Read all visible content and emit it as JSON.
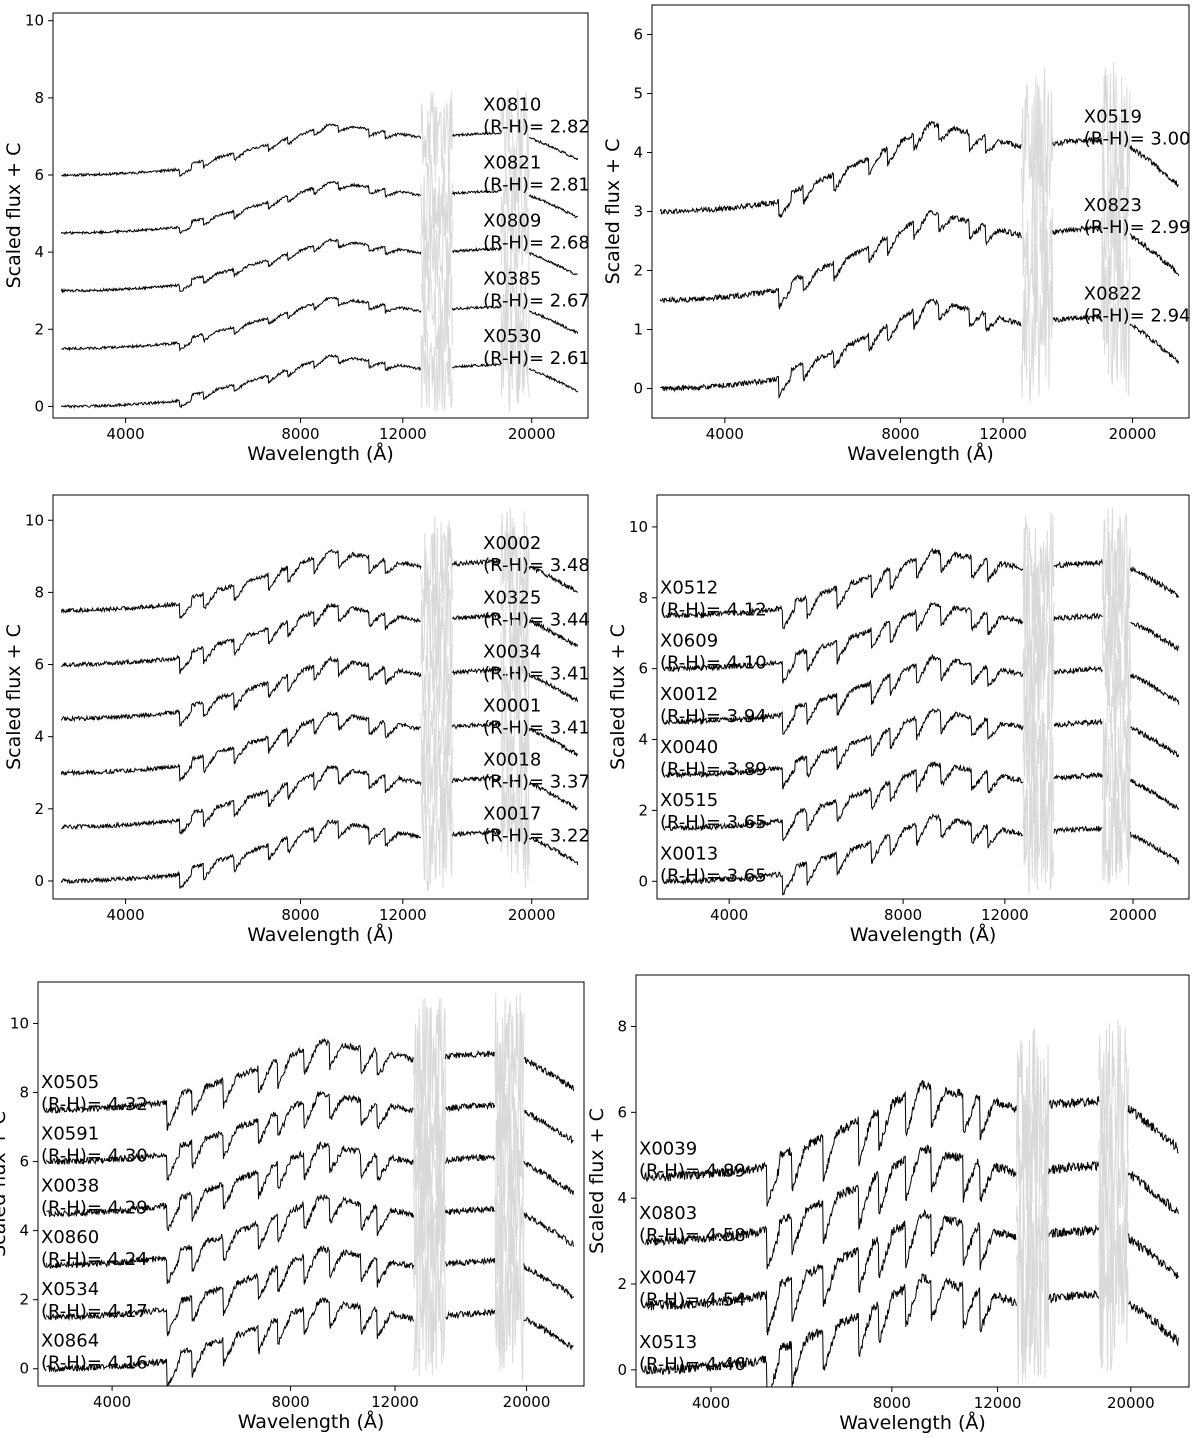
{
  "figure": {
    "chart_data": [
      {
        "type": "line",
        "xlabel": "Wavelength (Å)",
        "ylabel": "Scaled flux + C",
        "x_scale": "log",
        "xlim": [
          3000,
          25000
        ],
        "ylim": [
          -0.3,
          10.2
        ],
        "x_ticks": [
          4000,
          8000,
          12000,
          20000
        ],
        "y_ticks": [
          0,
          2,
          4,
          6,
          8,
          10
        ],
        "label_position": "right",
        "series": [
          {
            "name": "X0810",
            "color_index": "(R-H)= 2.82",
            "offset": 6.0
          },
          {
            "name": "X0821",
            "color_index": "(R-H)= 2.81",
            "offset": 4.5
          },
          {
            "name": "X0809",
            "color_index": "(R-H)= 2.68",
            "offset": 3.0
          },
          {
            "name": "X0385",
            "color_index": "(R-H)= 2.67",
            "offset": 1.5
          },
          {
            "name": "X0530",
            "color_index": "(R-H)= 2.61",
            "offset": 0.0
          }
        ]
      },
      {
        "type": "line",
        "xlabel": "Wavelength (Å)",
        "ylabel": "Scaled flux + C",
        "x_scale": "log",
        "xlim": [
          3000,
          25000
        ],
        "ylim": [
          -0.5,
          6.5
        ],
        "x_ticks": [
          4000,
          8000,
          12000,
          20000
        ],
        "y_ticks": [
          0,
          1,
          2,
          3,
          4,
          5,
          6
        ],
        "label_position": "right",
        "series": [
          {
            "name": "X0519",
            "color_index": "(R-H)= 3.00",
            "offset": 3.0
          },
          {
            "name": "X0823",
            "color_index": "(R-H)= 2.99",
            "offset": 1.5
          },
          {
            "name": "X0822",
            "color_index": "(R-H)= 2.94",
            "offset": 0.0
          }
        ]
      },
      {
        "type": "line",
        "xlabel": "Wavelength (Å)",
        "ylabel": "Scaled flux + C",
        "x_scale": "log",
        "xlim": [
          3000,
          25000
        ],
        "ylim": [
          -0.5,
          10.7
        ],
        "x_ticks": [
          4000,
          8000,
          12000,
          20000
        ],
        "y_ticks": [
          0,
          2,
          4,
          6,
          8,
          10
        ],
        "label_position": "right",
        "series": [
          {
            "name": "X0002",
            "color_index": "(R-H)= 3.48",
            "offset": 7.5
          },
          {
            "name": "X0325",
            "color_index": "(R-H)= 3.44",
            "offset": 6.0
          },
          {
            "name": "X0034",
            "color_index": "(R-H)= 3.41",
            "offset": 4.5
          },
          {
            "name": "X0001",
            "color_index": "(R-H)= 3.41",
            "offset": 3.0
          },
          {
            "name": "X0018",
            "color_index": "(R-H)= 3.37",
            "offset": 1.5
          },
          {
            "name": "X0017",
            "color_index": "(R-H)= 3.22",
            "offset": 0.0
          }
        ]
      },
      {
        "type": "line",
        "xlabel": "Wavelength (Å)",
        "ylabel": "Scaled flux + C",
        "x_scale": "log",
        "xlim": [
          3000,
          25000
        ],
        "ylim": [
          -0.5,
          10.9
        ],
        "x_ticks": [
          4000,
          8000,
          12000,
          20000
        ],
        "y_ticks": [
          0,
          2,
          4,
          6,
          8,
          10
        ],
        "label_position": "left",
        "series": [
          {
            "name": "X0512",
            "color_index": "(R-H)= 4.12",
            "offset": 7.5
          },
          {
            "name": "X0609",
            "color_index": "(R-H)= 4.10",
            "offset": 6.0
          },
          {
            "name": "X0012",
            "color_index": "(R-H)= 3.94",
            "offset": 4.5
          },
          {
            "name": "X0040",
            "color_index": "(R-H)= 3.89",
            "offset": 3.0
          },
          {
            "name": "X0515",
            "color_index": "(R-H)= 3.65",
            "offset": 1.5
          },
          {
            "name": "X0013",
            "color_index": "(R-H)= 3.65",
            "offset": 0.0
          }
        ]
      },
      {
        "type": "line",
        "xlabel": "Wavelength (Å)",
        "ylabel": "Scaled flux + C",
        "x_scale": "log",
        "xlim": [
          3000,
          25000
        ],
        "ylim": [
          -0.5,
          11.2
        ],
        "x_ticks": [
          4000,
          8000,
          12000,
          20000
        ],
        "y_ticks": [
          0,
          2,
          4,
          6,
          8,
          10
        ],
        "label_position": "left",
        "series": [
          {
            "name": "X0505",
            "color_index": "(R-H)= 4.32",
            "offset": 7.5
          },
          {
            "name": "X0591",
            "color_index": "(R-H)= 4.30",
            "offset": 6.0
          },
          {
            "name": "X0038",
            "color_index": "(R-H)= 4.29",
            "offset": 4.5
          },
          {
            "name": "X0860",
            "color_index": "(R-H)= 4.24",
            "offset": 3.0
          },
          {
            "name": "X0534",
            "color_index": "(R-H)= 4.17",
            "offset": 1.5
          },
          {
            "name": "X0864",
            "color_index": "(R-H)= 4.16",
            "offset": 0.0
          }
        ]
      },
      {
        "type": "line",
        "xlabel": "Wavelength (Å)",
        "ylabel": "Scaled flux + C",
        "x_scale": "log",
        "xlim": [
          3000,
          25000
        ],
        "ylim": [
          -0.4,
          9.2
        ],
        "x_ticks": [
          4000,
          8000,
          12000,
          20000
        ],
        "y_ticks": [
          0,
          2,
          4,
          6,
          8
        ],
        "label_position": "left",
        "series": [
          {
            "name": "X0039",
            "color_index": "(R-H)= 4.89",
            "offset": 4.5
          },
          {
            "name": "X0803",
            "color_index": "(R-H)= 4.58",
            "offset": 3.0
          },
          {
            "name": "X0047",
            "color_index": "(R-H)= 4.54",
            "offset": 1.5
          },
          {
            "name": "X0513",
            "color_index": "(R-H)= 4.46",
            "offset": 0.0
          }
        ]
      }
    ],
    "colors": {
      "spectrum": "#000000",
      "telluric": "#d9d9d9",
      "axes": "#000000"
    }
  }
}
